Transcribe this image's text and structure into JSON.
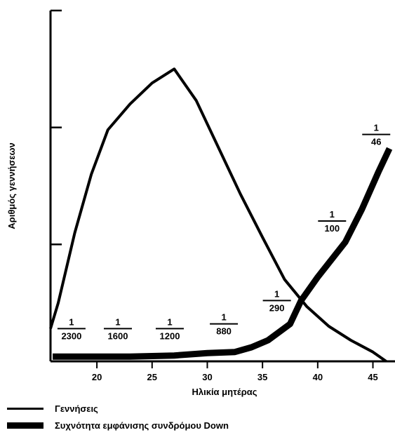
{
  "chart_data": {
    "type": "line",
    "xlabel": "Ηλικία μητέρας",
    "ylabel": "Αριθμός γεννήσεων",
    "xlim": [
      15.8,
      47
    ],
    "ylim": [
      0,
      3
    ],
    "xticks": [
      20,
      25,
      30,
      35,
      40,
      45
    ],
    "yticks": [
      1,
      2,
      3
    ],
    "y_tick_labels_shown": false,
    "grid": false,
    "legend_position": "bottom-left",
    "series": [
      {
        "name": "Γεννήσεις",
        "style": "thin",
        "x": [
          15.8,
          16.5,
          18,
          19.5,
          21,
          23,
          25,
          27,
          29,
          31,
          33,
          35,
          37,
          39,
          41,
          43,
          45,
          46.2
        ],
        "y": [
          0.28,
          0.5,
          1.1,
          1.6,
          1.98,
          2.2,
          2.38,
          2.5,
          2.23,
          1.83,
          1.43,
          1.06,
          0.7,
          0.47,
          0.3,
          0.18,
          0.08,
          0.0
        ]
      },
      {
        "name": "Συχνότητα εμφάνισης συνδρόμου Down",
        "style": "thick",
        "x": [
          16,
          20,
          23,
          27,
          30,
          32.5,
          34,
          35.5,
          37.5,
          38.5,
          40,
          42.5,
          44,
          45.5,
          46.5
        ],
        "y": [
          0.04,
          0.04,
          0.04,
          0.05,
          0.07,
          0.08,
          0.12,
          0.18,
          0.32,
          0.52,
          0.72,
          1.02,
          1.3,
          1.62,
          1.82
        ]
      }
    ],
    "annotations": [
      {
        "numerator": "1",
        "denominator": "2300",
        "x": 17.7,
        "y": 0.28
      },
      {
        "numerator": "1",
        "denominator": "1600",
        "x": 21.9,
        "y": 0.28
      },
      {
        "numerator": "1",
        "denominator": "1200",
        "x": 26.6,
        "y": 0.28
      },
      {
        "numerator": "1",
        "denominator": "880",
        "x": 31.5,
        "y": 0.32
      },
      {
        "numerator": "1",
        "denominator": "290",
        "x": 36.3,
        "y": 0.52
      },
      {
        "numerator": "1",
        "denominator": "100",
        "x": 41.3,
        "y": 1.2
      },
      {
        "numerator": "1",
        "denominator": "46",
        "x": 45.3,
        "y": 1.94
      }
    ]
  },
  "legend": {
    "items": [
      {
        "label": "Γεννήσεις"
      },
      {
        "label": "Συχνότητα εμφάνισης συνδρόμου Down"
      }
    ]
  }
}
